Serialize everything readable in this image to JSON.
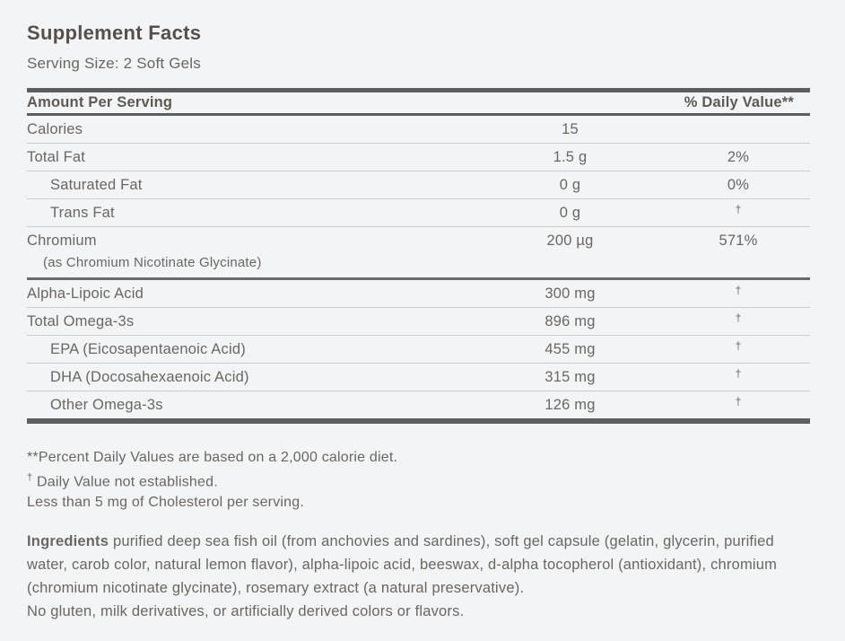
{
  "colors": {
    "page-bg": "#f3f4f6",
    "text": "#6b6661",
    "title-text": "#55504b",
    "bar": "#5d5e61",
    "separator": "#ccced1",
    "dark-separator": "#6a6a6e"
  },
  "label": {
    "title": "Supplement Facts",
    "serving_size": "Serving Size: 2 Soft Gels",
    "header": {
      "amount_col": "Amount Per Serving",
      "dv_col": "% Daily Value**"
    },
    "rows": [
      {
        "name": "Calories",
        "amount": "15",
        "dv": "",
        "indent": false,
        "subtext": "",
        "divider": "light"
      },
      {
        "name": "Total Fat",
        "amount": "1.5 g",
        "dv": "2%",
        "indent": false,
        "subtext": "",
        "divider": "light"
      },
      {
        "name": "Saturated Fat",
        "amount": "0 g",
        "dv": "0%",
        "indent": true,
        "subtext": "",
        "divider": "light"
      },
      {
        "name": "Trans Fat",
        "amount": "0 g",
        "dv": "†",
        "indent": true,
        "subtext": "",
        "divider": "light"
      },
      {
        "name": "Chromium",
        "amount": "200 µg",
        "dv": "571%",
        "indent": false,
        "subtext": "(as Chromium Nicotinate Glycinate)",
        "divider": "dark"
      },
      {
        "name": "Alpha-Lipoic Acid",
        "amount": "300 mg",
        "dv": "†",
        "indent": false,
        "subtext": "",
        "divider": "light"
      },
      {
        "name": "Total Omega-3s",
        "amount": "896 mg",
        "dv": "†",
        "indent": false,
        "subtext": "",
        "divider": "light"
      },
      {
        "name": "EPA (Eicosapentaenoic Acid)",
        "amount": "455 mg",
        "dv": "†",
        "indent": true,
        "subtext": "",
        "divider": "light"
      },
      {
        "name": "DHA (Docosahexaenoic Acid)",
        "amount": "315 mg",
        "dv": "†",
        "indent": true,
        "subtext": "",
        "divider": "light"
      },
      {
        "name": "Other Omega-3s",
        "amount": "126 mg",
        "dv": "†",
        "indent": true,
        "subtext": "",
        "divider": "none"
      }
    ],
    "footnotes": {
      "percent": "**Percent Daily Values are based on a 2,000 calorie diet.",
      "dagger_symbol": "†",
      "dagger_text": "Daily Value not established.",
      "cholesterol": "Less than 5 mg of Cholesterol per serving."
    },
    "ingredients": {
      "lead": "Ingredients",
      "text": "purified deep sea fish oil (from anchovies and sardines), soft gel capsule (gelatin, glycerin, purified water, carob color, natural lemon flavor), alpha-lipoic acid, beeswax, d-alpha tocopherol (antioxidant), chromium (chromium nicotinate glycinate), rosemary extract (a natural preservative).",
      "allergen": "No gluten, milk derivatives, or artificially derived colors or flavors."
    }
  }
}
